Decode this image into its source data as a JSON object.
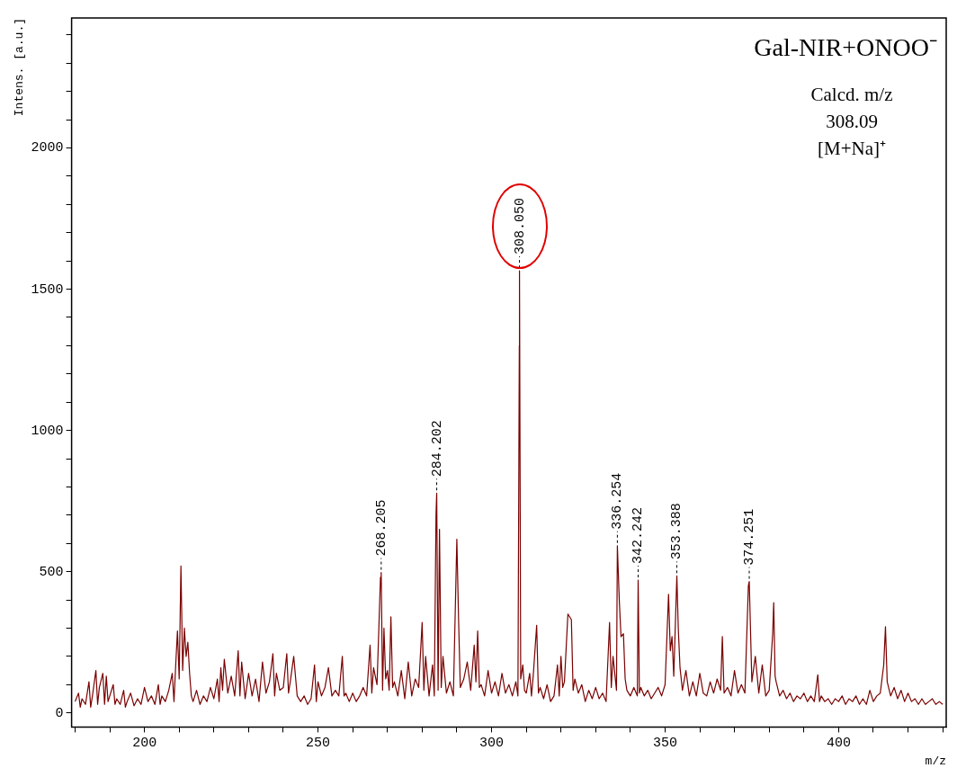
{
  "chart_data": {
    "type": "line",
    "title": "Gal-NIR+ONOO⁻",
    "xlabel": "m/z",
    "ylabel": "Intens. [a.u.]",
    "xlim": [
      179,
      431
    ],
    "ylim": [
      -50,
      2460
    ],
    "xticks": [
      {
        "value": 180,
        "label": null
      },
      {
        "value": 190,
        "label": null
      },
      200,
      {
        "value": 210,
        "label": null
      },
      {
        "value": 220,
        "label": null
      },
      {
        "value": 230,
        "label": null
      },
      {
        "value": 240,
        "label": null
      },
      250,
      {
        "value": 260,
        "label": null
      },
      {
        "value": 270,
        "label": null
      },
      {
        "value": 280,
        "label": null
      },
      {
        "value": 290,
        "label": null
      },
      300,
      {
        "value": 310,
        "label": null
      },
      {
        "value": 320,
        "label": null
      },
      {
        "value": 330,
        "label": null
      },
      {
        "value": 340,
        "label": null
      },
      350,
      {
        "value": 360,
        "label": null
      },
      {
        "value": 370,
        "label": null
      },
      {
        "value": 380,
        "label": null
      },
      {
        "value": 390,
        "label": null
      },
      400,
      {
        "value": 410,
        "label": null
      },
      {
        "value": 420,
        "label": null
      },
      {
        "value": 430,
        "label": null
      }
    ],
    "yticks": [
      0,
      {
        "value": 100,
        "label": null
      },
      {
        "value": 200,
        "label": null
      },
      {
        "value": 300,
        "label": null
      },
      {
        "value": 400,
        "label": null
      },
      500,
      {
        "value": 600,
        "label": null
      },
      {
        "value": 700,
        "label": null
      },
      {
        "value": 800,
        "label": null
      },
      {
        "value": 900,
        "label": null
      },
      1000,
      {
        "value": 1100,
        "label": null
      },
      {
        "value": 1200,
        "label": null
      },
      {
        "value": 1300,
        "label": null
      },
      {
        "value": 1400,
        "label": null
      },
      1500,
      {
        "value": 1600,
        "label": null
      },
      {
        "value": 1700,
        "label": null
      },
      {
        "value": 1800,
        "label": null
      },
      {
        "value": 1900,
        "label": null
      },
      2000,
      {
        "value": 2100,
        "label": null
      },
      {
        "value": 2200,
        "label": null
      },
      {
        "value": 2300,
        "label": null
      },
      {
        "value": 2400,
        "label": null
      }
    ],
    "marker": "none",
    "line_style": "solid",
    "legend": false,
    "series": [
      {
        "color": "#7a0000",
        "x": [
          180,
          181,
          181.5,
          182,
          183,
          184,
          184.5,
          185,
          186,
          186.5,
          187,
          188,
          188.5,
          189,
          189.5,
          190,
          191,
          191.5,
          192,
          193,
          194,
          194.5,
          195,
          196,
          197,
          198,
          199,
          200,
          201,
          202,
          203,
          204,
          204.5,
          205,
          206,
          207,
          208,
          208.5,
          209,
          209.5,
          210,
          210.5,
          211,
          211.5,
          212,
          212.5,
          213,
          213.5,
          214,
          215,
          216,
          217,
          218,
          219,
          220,
          221,
          221.5,
          222,
          222.5,
          223,
          224,
          225,
          226,
          227,
          227.5,
          228,
          229,
          230,
          231,
          232,
          233,
          234,
          235,
          236,
          237,
          237.5,
          238,
          239,
          240,
          241,
          241.5,
          242,
          243,
          244,
          245,
          246,
          247,
          248,
          249,
          249.5,
          250,
          251,
          252,
          253,
          254,
          255,
          256,
          257,
          257.5,
          258,
          259,
          260,
          261,
          262,
          263,
          264,
          265,
          265.5,
          266,
          267,
          268,
          268.2,
          268.6,
          269,
          269.5,
          270,
          270.5,
          271,
          271.5,
          272,
          273,
          274,
          275,
          276,
          277,
          278,
          279,
          280,
          280.5,
          281,
          282,
          283,
          283.5,
          284,
          284.2,
          284.6,
          285,
          285.5,
          286,
          287,
          288,
          289,
          290,
          290.5,
          291,
          292,
          293,
          294,
          295,
          295.5,
          296,
          296.5,
          297,
          298,
          299,
          300,
          301,
          302,
          303,
          304,
          305,
          306,
          307,
          307.6,
          308,
          308.05,
          308.4,
          309,
          309.5,
          310,
          311,
          311.5,
          312,
          313,
          313.5,
          314,
          315,
          316,
          317,
          318,
          319,
          319.5,
          320,
          320.5,
          321,
          322,
          323,
          323.5,
          324,
          325,
          326,
          327,
          328,
          329,
          330,
          331,
          332,
          333,
          334,
          334.5,
          335,
          336,
          336.25,
          336.8,
          337.3,
          338,
          338.5,
          339,
          340,
          341,
          342,
          342.24,
          342.6,
          343,
          344,
          345,
          346,
          347,
          348,
          349,
          350,
          350.5,
          351,
          351.5,
          352,
          352.5,
          353.39,
          353.8,
          354.3,
          355,
          356,
          357,
          358,
          359,
          360,
          361,
          362,
          363,
          364,
          365,
          366,
          366.5,
          367,
          368,
          369,
          370,
          371,
          372,
          373,
          374,
          374.25,
          374.6,
          375,
          376,
          377,
          378,
          379,
          380,
          381,
          381.3,
          381.7,
          382,
          383,
          384,
          385,
          386,
          387,
          388,
          389,
          390,
          391,
          392,
          393,
          394,
          394.5,
          395,
          396,
          397,
          398,
          399,
          400,
          401,
          402,
          403,
          404,
          405,
          406,
          407,
          408,
          409,
          410,
          411,
          412,
          413,
          413.5,
          414,
          415,
          416,
          417,
          418,
          419,
          420,
          421,
          422,
          423,
          424,
          425,
          426,
          427,
          428,
          429,
          430
        ],
        "values": [
          40,
          70,
          20,
          50,
          30,
          110,
          20,
          60,
          150,
          30,
          90,
          140,
          30,
          130,
          40,
          60,
          100,
          30,
          50,
          30,
          80,
          20,
          40,
          70,
          25,
          50,
          30,
          90,
          40,
          60,
          30,
          100,
          30,
          60,
          40,
          80,
          140,
          40,
          170,
          290,
          120,
          520,
          150,
          300,
          200,
          250,
          140,
          60,
          40,
          80,
          30,
          60,
          40,
          90,
          50,
          120,
          40,
          160,
          80,
          190,
          70,
          130,
          60,
          220,
          60,
          180,
          50,
          140,
          60,
          120,
          40,
          180,
          70,
          110,
          210,
          60,
          140,
          80,
          90,
          210,
          70,
          110,
          200,
          60,
          40,
          60,
          30,
          50,
          170,
          40,
          110,
          60,
          90,
          160,
          60,
          80,
          60,
          200,
          60,
          70,
          40,
          70,
          40,
          60,
          90,
          60,
          240,
          70,
          160,
          100,
          480,
          497,
          80,
          300,
          120,
          150,
          80,
          340,
          90,
          110,
          60,
          150,
          50,
          180,
          60,
          120,
          90,
          320,
          80,
          200,
          60,
          170,
          60,
          700,
          778,
          80,
          650,
          90,
          200,
          70,
          110,
          60,
          615,
          330,
          90,
          120,
          180,
          80,
          240,
          110,
          290,
          90,
          100,
          60,
          150,
          70,
          110,
          60,
          140,
          70,
          100,
          60,
          110,
          60,
          1300,
          1565,
          120,
          170,
          80,
          70,
          140,
          60,
          130,
          310,
          70,
          90,
          50,
          100,
          40,
          60,
          170,
          60,
          200,
          90,
          110,
          350,
          330,
          80,
          120,
          70,
          100,
          40,
          80,
          50,
          90,
          50,
          70,
          40,
          320,
          90,
          200,
          80,
          592,
          400,
          270,
          280,
          120,
          80,
          60,
          90,
          60,
          470,
          70,
          90,
          60,
          80,
          50,
          70,
          90,
          60,
          100,
          260,
          420,
          220,
          270,
          130,
          485,
          300,
          160,
          80,
          150,
          60,
          110,
          60,
          140,
          70,
          60,
          110,
          70,
          120,
          80,
          270,
          70,
          90,
          60,
          150,
          70,
          100,
          70,
          450,
          465,
          300,
          110,
          200,
          70,
          170,
          60,
          80,
          280,
          390,
          130,
          110,
          60,
          80,
          50,
          70,
          40,
          60,
          50,
          70,
          40,
          60,
          40,
          135,
          40,
          60,
          40,
          50,
          30,
          50,
          40,
          60,
          30,
          50,
          40,
          60,
          30,
          50,
          30,
          80,
          40,
          60,
          70,
          170,
          305,
          110,
          60,
          90,
          50,
          80,
          40,
          70,
          40,
          50,
          30,
          50,
          30,
          40,
          50,
          30,
          40,
          30
        ]
      }
    ],
    "annotations": [
      "Calcd. m/z",
      "308.09",
      "[M+Na]⁺",
      {
        "text": "268.205",
        "x": 268.205,
        "y": 497
      },
      {
        "text": "284.202",
        "x": 284.202,
        "y": 778
      },
      {
        "text": "308.050",
        "x": 308.05,
        "y": 1565
      },
      {
        "text": "336.254",
        "x": 336.254,
        "y": 592
      },
      {
        "text": "342.242",
        "x": 342.242,
        "y": 470
      },
      {
        "text": "353.388",
        "x": 353.388,
        "y": 485
      },
      {
        "text": "374.251",
        "x": 374.251,
        "y": 465
      }
    ]
  }
}
